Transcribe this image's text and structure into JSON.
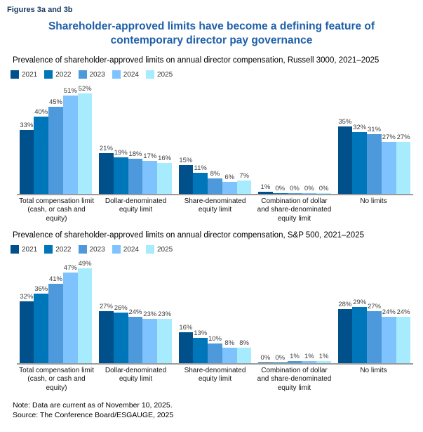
{
  "page": {
    "figure_label": "Figures 3a and 3b",
    "title_line1": "Shareholder-approved limits have become a defining feature of",
    "title_line2": "contemporary director pay governance",
    "note": "Note: Data are current as of November 10, 2025.",
    "source": "Source: The Conference Board/ESGAUGE, 2025"
  },
  "colors": {
    "series": [
      "#00518B",
      "#0076BA",
      "#4D99DC",
      "#7EC3FE",
      "#A6EBFE"
    ],
    "title": "#1E5FA9",
    "figure_label": "#17375E",
    "axis": "#9B9B9B"
  },
  "chart_data": [
    {
      "type": "bar",
      "title": "Prevalence of shareholder-approved limits on annual director compensation, Russell 3000, 2021–2025",
      "legend": [
        "2021",
        "2022",
        "2023",
        "2024",
        "2025"
      ],
      "legend_position": "top-left",
      "grid": false,
      "unit": "%",
      "ylim": [
        0,
        55
      ],
      "categories": [
        "Total compensation limit (cash, or cash and equity)",
        "Dollar-denominated equity limit",
        "Share-denominated equity limit",
        "Combination of dollar and share-denominated equity limit",
        "No limits"
      ],
      "series": [
        {
          "name": "2021",
          "values": [
            33,
            21,
            15,
            1,
            35
          ]
        },
        {
          "name": "2022",
          "values": [
            40,
            19,
            11,
            0,
            32
          ]
        },
        {
          "name": "2023",
          "values": [
            45,
            18,
            8,
            0,
            31
          ]
        },
        {
          "name": "2024",
          "values": [
            51,
            17,
            6,
            0,
            27
          ]
        },
        {
          "name": "2025",
          "values": [
            52,
            16,
            7,
            0,
            27
          ]
        }
      ]
    },
    {
      "type": "bar",
      "title": "Prevalence of shareholder-approved limits on annual director compensation, S&P 500, 2021–2025",
      "legend": [
        "2021",
        "2022",
        "2023",
        "2024",
        "2025"
      ],
      "legend_position": "top-left",
      "grid": false,
      "unit": "%",
      "ylim": [
        0,
        55
      ],
      "categories": [
        "Total compensation limit (cash, or cash and equity)",
        "Dollar-denominated equity limit",
        "Share-denominated equity limit",
        "Combination of dollar and share-denominated equity limit",
        "No limits"
      ],
      "series": [
        {
          "name": "2021",
          "values": [
            32,
            27,
            16,
            0,
            28
          ]
        },
        {
          "name": "2022",
          "values": [
            36,
            26,
            13,
            0,
            29
          ]
        },
        {
          "name": "2023",
          "values": [
            41,
            24,
            10,
            1,
            27
          ]
        },
        {
          "name": "2024",
          "values": [
            47,
            23,
            8,
            1,
            24
          ]
        },
        {
          "name": "2025",
          "values": [
            49,
            23,
            8,
            1,
            24
          ]
        }
      ]
    }
  ]
}
